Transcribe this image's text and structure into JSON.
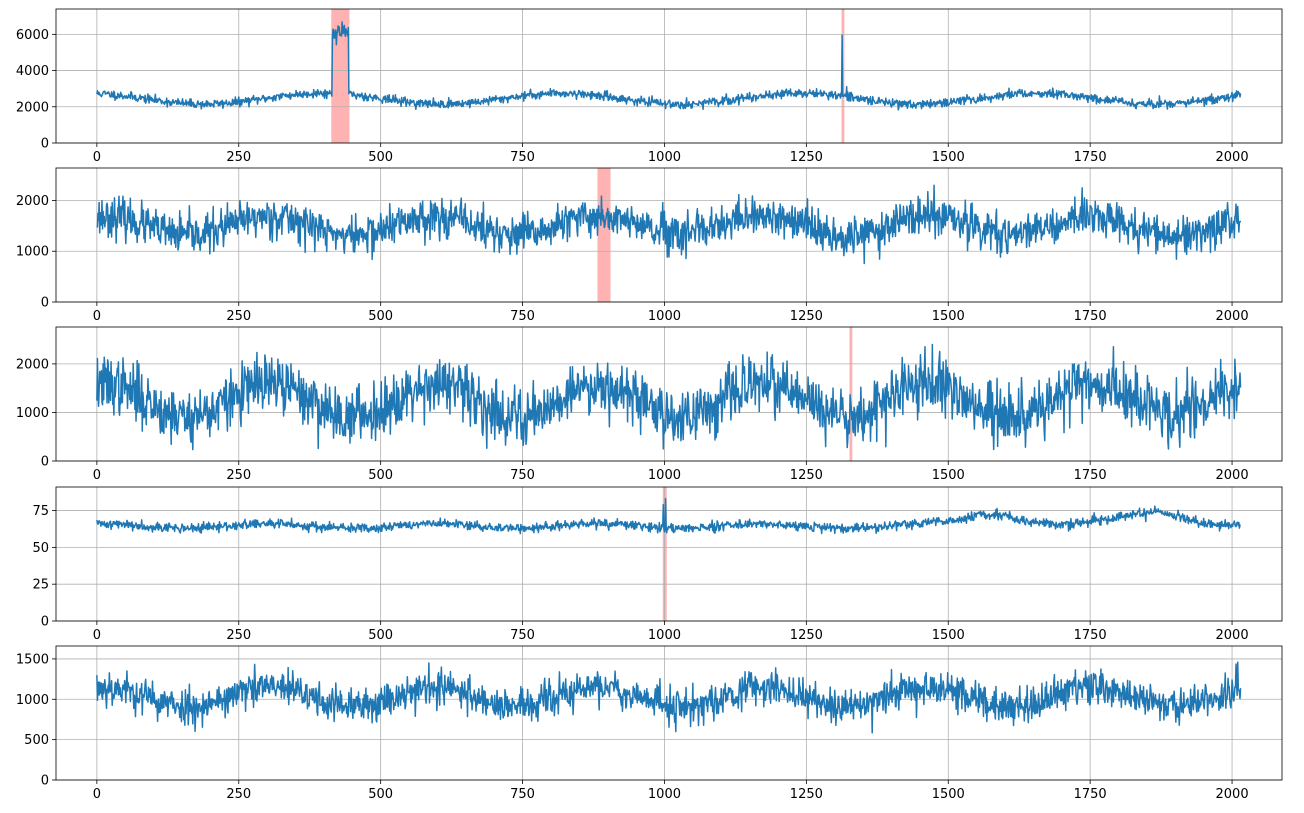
{
  "colors": {
    "line": "#1f77b4",
    "anomaly": "#ff0000",
    "grid": "#b0b0b0",
    "axis": "#000000"
  },
  "chart_data": [
    {
      "type": "line",
      "xlim": [
        -72,
        2088
      ],
      "ylim": [
        0,
        7400
      ],
      "xticks": [
        0,
        250,
        500,
        750,
        1000,
        1250,
        1500,
        1750,
        2000
      ],
      "yticks": [
        0,
        2000,
        4000,
        6000
      ],
      "tick_labels_x": [
        "0",
        "250",
        "500",
        "750",
        "1000",
        "1250",
        "1500",
        "1750",
        "2000"
      ],
      "tick_labels_y": [
        "0",
        "2000",
        "4000",
        "6000"
      ],
      "grid": true,
      "series": [
        {
          "n": 2016,
          "base": 2450,
          "waves": [
            [
              420,
              300,
              0.3
            ]
          ],
          "noise": 120,
          "seed": 11,
          "level_shifts": [
            {
              "start": 415,
              "end": 443,
              "value": 6100,
              "noise": 250
            }
          ],
          "spikes": [
            {
              "x": 1313,
              "value": 5950
            }
          ]
        }
      ],
      "anomaly_regions": [
        [
          413,
          445
        ],
        [
          1312,
          1317
        ]
      ]
    },
    {
      "type": "line",
      "xlim": [
        -72,
        2088
      ],
      "ylim": [
        0,
        2640
      ],
      "xticks": [
        0,
        250,
        500,
        750,
        1000,
        1250,
        1500,
        1750,
        2000
      ],
      "yticks": [
        0,
        1000,
        2000
      ],
      "tick_labels_x": [
        "0",
        "250",
        "500",
        "750",
        "1000",
        "1250",
        "1500",
        "1750",
        "2000"
      ],
      "tick_labels_y": [
        "0",
        "1000",
        "2000"
      ],
      "grid": true,
      "series": [
        {
          "n": 2016,
          "base": 1500,
          "waves": [
            [
              290,
              190,
              0.2
            ]
          ],
          "noise": 190,
          "seed": 23,
          "level_shifts": [],
          "spikes": []
        }
      ],
      "anomaly_regions": [
        [
          882,
          905
        ]
      ]
    },
    {
      "type": "line",
      "xlim": [
        -72,
        2088
      ],
      "ylim": [
        0,
        2760
      ],
      "xticks": [
        0,
        250,
        500,
        750,
        1000,
        1250,
        1500,
        1750,
        2000
      ],
      "yticks": [
        0,
        1000,
        2000
      ],
      "tick_labels_x": [
        "0",
        "250",
        "500",
        "750",
        "1000",
        "1250",
        "1500",
        "1750",
        "2000"
      ],
      "tick_labels_y": [
        "0",
        "1000",
        "2000"
      ],
      "grid": true,
      "series": [
        {
          "n": 2016,
          "base": 1250,
          "waves": [
            [
              290,
              330,
              0.2
            ]
          ],
          "noise": 290,
          "seed": 37,
          "level_shifts": [],
          "spikes": []
        }
      ],
      "anomaly_regions": [
        [
          1326,
          1331
        ]
      ]
    },
    {
      "type": "line",
      "xlim": [
        -72,
        2088
      ],
      "ylim": [
        0,
        91
      ],
      "xticks": [
        0,
        250,
        500,
        750,
        1000,
        1250,
        1500,
        1750,
        2000
      ],
      "yticks": [
        0,
        25,
        50,
        75
      ],
      "tick_labels_x": [
        "0",
        "250",
        "500",
        "750",
        "1000",
        "1250",
        "1500",
        "1750",
        "2000"
      ],
      "tick_labels_y": [
        "0",
        "25",
        "50",
        "75"
      ],
      "grid": true,
      "series": [
        {
          "n": 2016,
          "base": 64.5,
          "waves": [
            [
              290,
              1.5,
              0.2
            ]
          ],
          "noise": 1.6,
          "seed": 41,
          "level_shifts": [],
          "spikes": [
            {
              "x": 1002,
              "value": 83
            },
            {
              "x": 998,
              "value": 79
            }
          ],
          "bumps": [
            {
              "center": 1580,
              "width": 50,
              "amp": 9
            },
            {
              "center": 1860,
              "width": 55,
              "amp": 10
            }
          ]
        }
      ],
      "anomaly_regions": [
        [
          997,
          1004
        ]
      ]
    },
    {
      "type": "line",
      "xlim": [
        -72,
        2088
      ],
      "ylim": [
        0,
        1660
      ],
      "xticks": [
        0,
        250,
        500,
        750,
        1000,
        1250,
        1500,
        1750,
        2000
      ],
      "yticks": [
        0,
        500,
        1000,
        1500
      ],
      "tick_labels_x": [
        "0",
        "250",
        "500",
        "750",
        "1000",
        "1250",
        "1500",
        "1750",
        "2000"
      ],
      "tick_labels_y": [
        "0",
        "500",
        "1000",
        "1500"
      ],
      "grid": true,
      "series": [
        {
          "n": 2016,
          "base": 1030,
          "waves": [
            [
              290,
              120,
              0.2
            ]
          ],
          "noise": 110,
          "seed": 53,
          "level_shifts": [],
          "spikes": []
        }
      ],
      "anomaly_regions": []
    }
  ]
}
